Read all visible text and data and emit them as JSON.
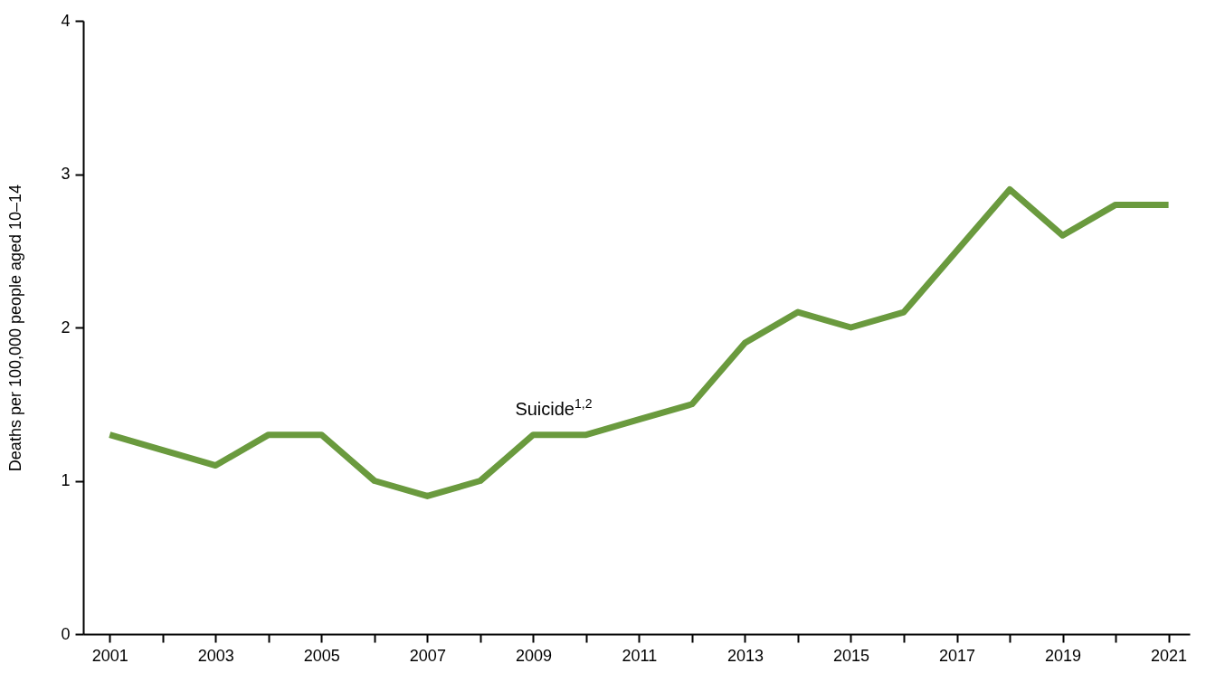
{
  "chart_data": {
    "type": "line",
    "ylabel": "Deaths per 100,000 people aged 10–14",
    "x": [
      2001,
      2002,
      2003,
      2004,
      2005,
      2006,
      2007,
      2008,
      2009,
      2010,
      2011,
      2012,
      2013,
      2014,
      2015,
      2016,
      2017,
      2018,
      2019,
      2020,
      2021
    ],
    "series": [
      {
        "name": "Suicide$^{1,2}$",
        "color": "#6a9a3e",
        "values": [
          1.3,
          1.2,
          1.1,
          1.3,
          1.3,
          1.0,
          0.9,
          1.0,
          1.3,
          1.3,
          1.4,
          1.5,
          1.9,
          2.1,
          2.0,
          2.1,
          2.5,
          2.9,
          2.6,
          2.8,
          2.8
        ]
      }
    ],
    "xlim": [
      2000.5,
      2021.4
    ],
    "xticks": [
      2001,
      {
        "value": 2002,
        "label": null
      },
      2003,
      {
        "value": 2004,
        "label": null
      },
      2005,
      {
        "value": 2006,
        "label": null
      },
      2007,
      {
        "value": 2008,
        "label": null
      },
      2009,
      {
        "value": 2010,
        "label": null
      },
      2011,
      {
        "value": 2012,
        "label": null
      },
      2013,
      {
        "value": 2014,
        "label": null
      },
      2015,
      {
        "value": 2016,
        "label": null
      },
      2017,
      {
        "value": 2018,
        "label": null
      },
      2019,
      {
        "value": 2020,
        "label": null
      },
      2021
    ],
    "ylim": [
      0,
      4
    ],
    "yticks": [
      0,
      1,
      2,
      3,
      4
    ],
    "grid": false,
    "marker": "none",
    "line_style": "solid"
  }
}
